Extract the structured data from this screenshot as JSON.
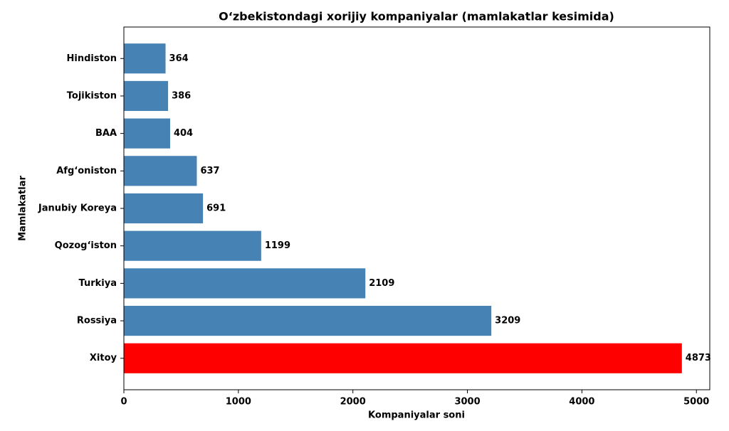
{
  "chart_data": {
    "type": "barh",
    "title": "O‘zbekistondagi xorijiy kompaniyalar (mamlakatlar kesimida)",
    "xlabel": "Kompaniyalar soni",
    "ylabel": "Mamlakatlar",
    "categories": [
      "Xitoy",
      "Rossiya",
      "Turkiya",
      "Qozog‘iston",
      "Janubiy Koreya",
      "Afg‘oniston",
      "BAA",
      "Tojikiston",
      "Hindiston"
    ],
    "values": [
      4873,
      3209,
      2109,
      1199,
      691,
      637,
      404,
      386,
      364
    ],
    "colors": [
      "#ff0000",
      "#4682b4",
      "#4682b4",
      "#4682b4",
      "#4682b4",
      "#4682b4",
      "#4682b4",
      "#4682b4",
      "#4682b4"
    ],
    "xlim": [
      0,
      5116.65
    ],
    "xticks": [
      0,
      1000,
      2000,
      3000,
      4000,
      5000
    ]
  }
}
